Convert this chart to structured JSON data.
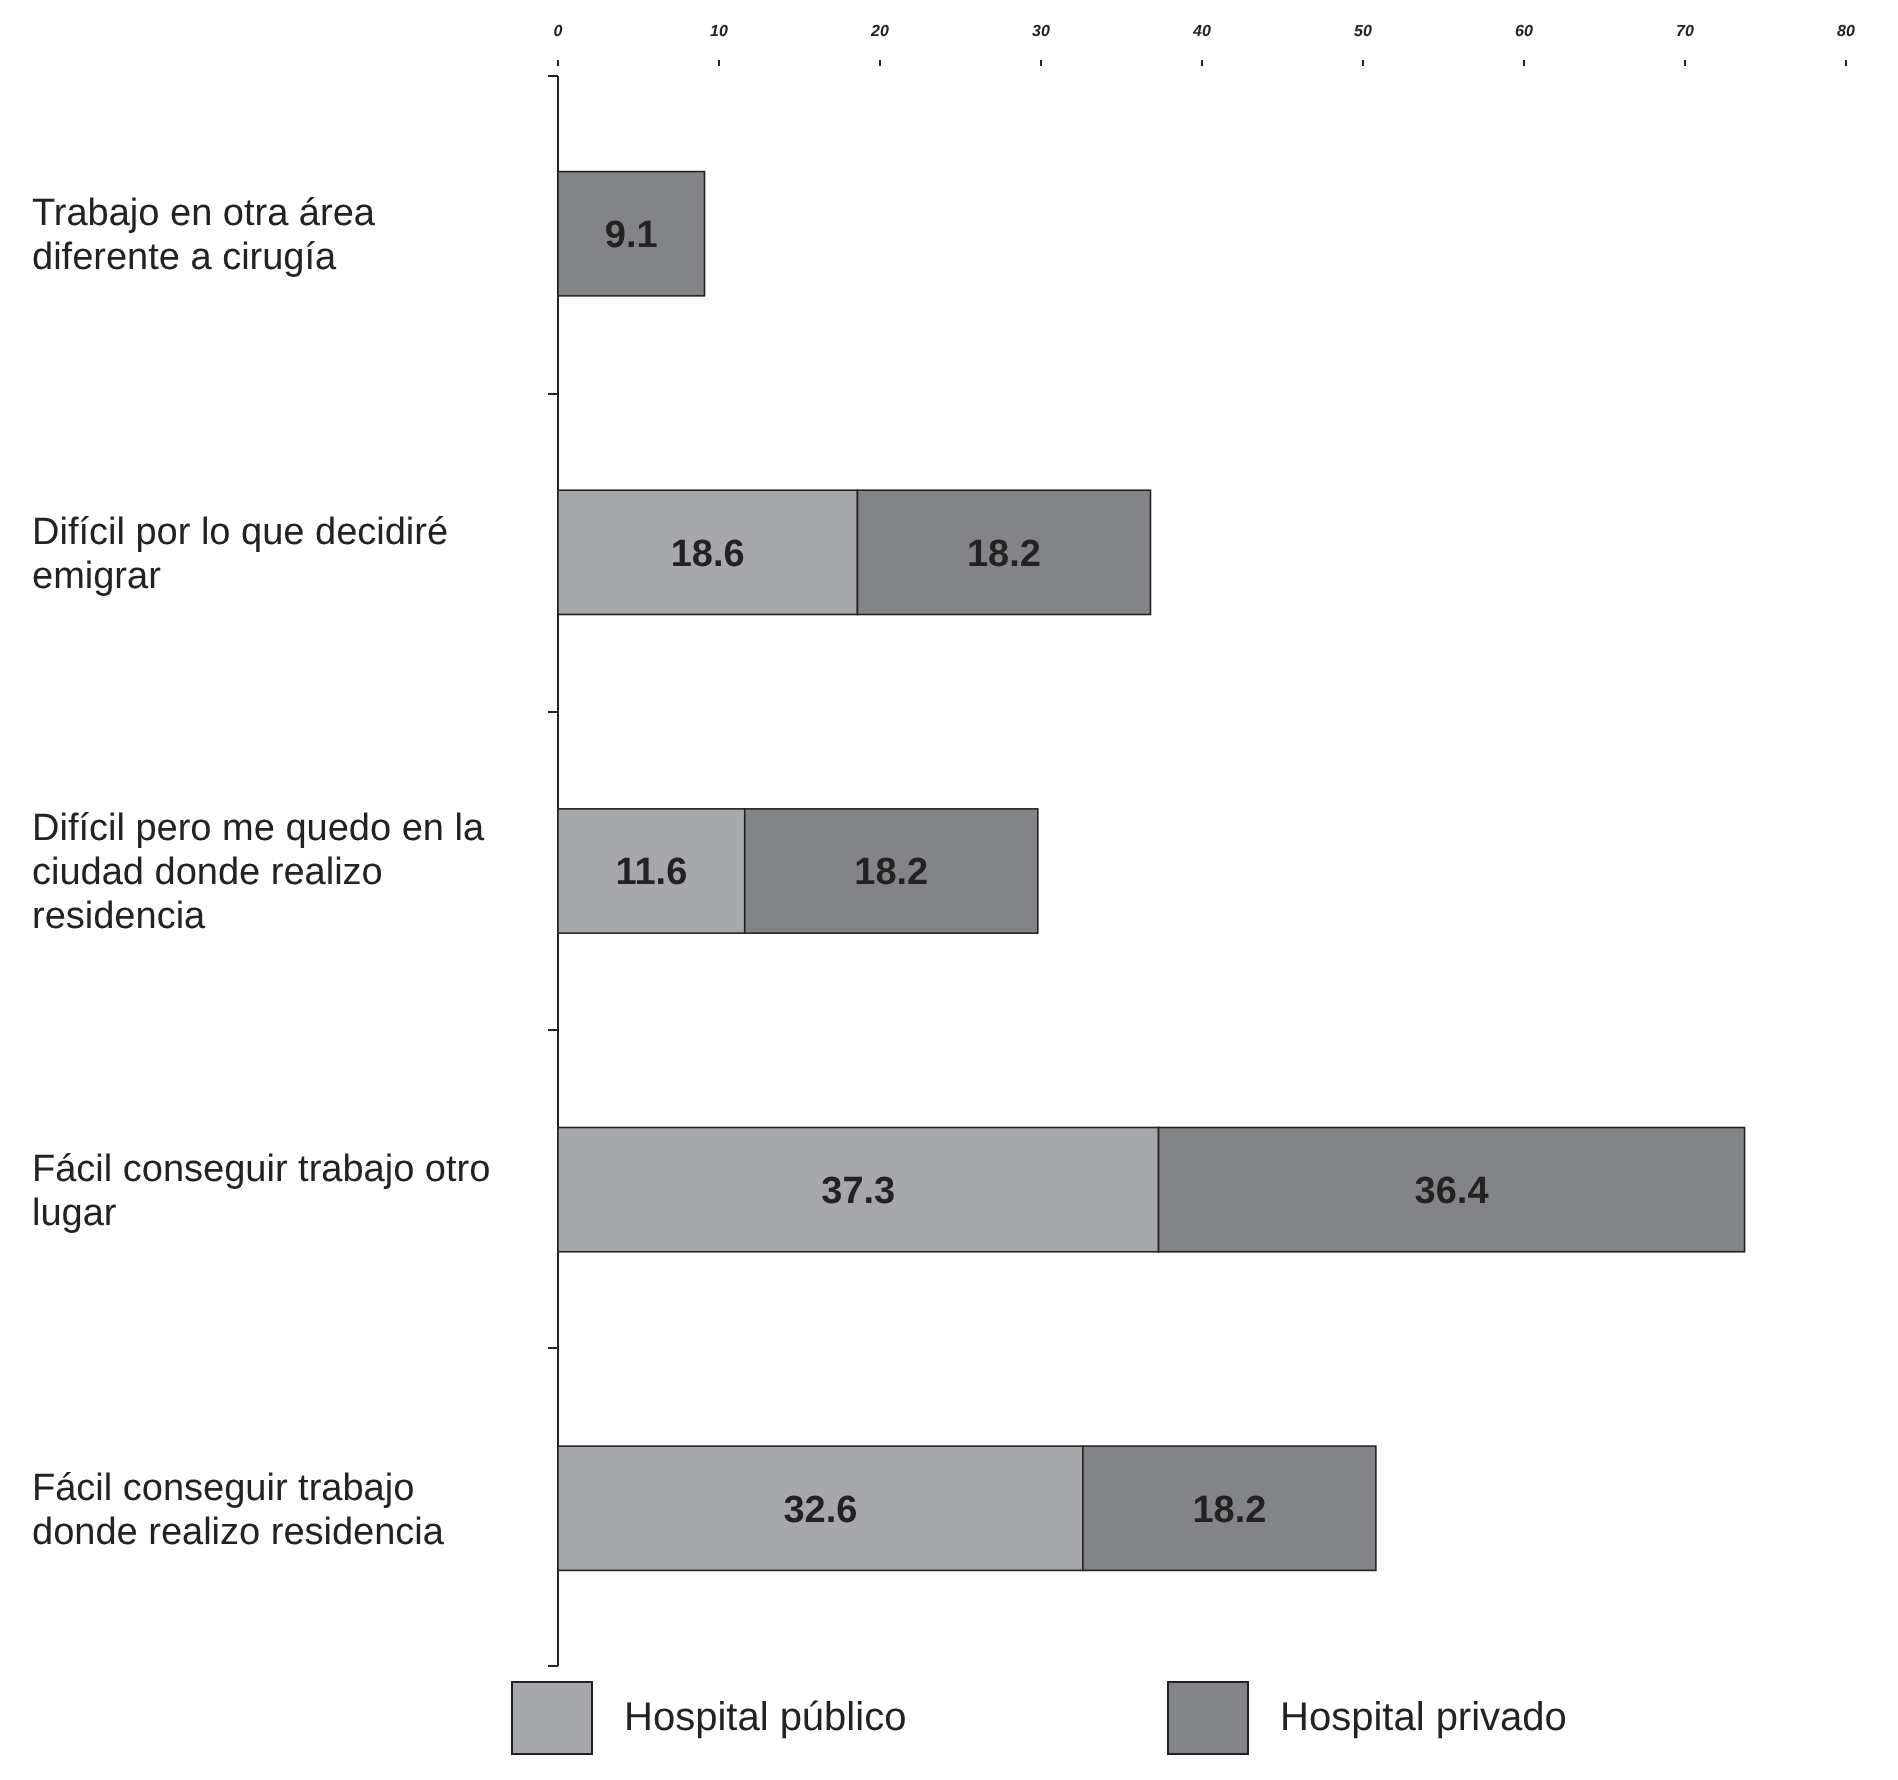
{
  "chart_data": {
    "type": "bar",
    "orientation": "horizontal",
    "stacked": true,
    "categories": [
      "Trabajo en otra área diferente a cirugía",
      "Difícil por lo que decidiré emigrar",
      "Difícil pero me quedo en la ciudad donde realizo residencia",
      "Fácil conseguir trabajo otro lugar",
      "Fácil conseguir trabajo donde realizo residencia"
    ],
    "series": [
      {
        "name": "Hospital público",
        "color": "#a7a8ac",
        "values": [
          null,
          18.6,
          11.6,
          37.3,
          32.6
        ]
      },
      {
        "name": "Hospital privado",
        "color": "#838487",
        "values": [
          9.1,
          18.2,
          18.2,
          36.4,
          18.2
        ]
      }
    ],
    "xlim": [
      0,
      80
    ],
    "xticks": [
      0,
      10,
      20,
      30,
      40,
      50,
      60,
      70,
      80
    ],
    "data_labels": true,
    "legend": "bottom",
    "grid": false
  }
}
